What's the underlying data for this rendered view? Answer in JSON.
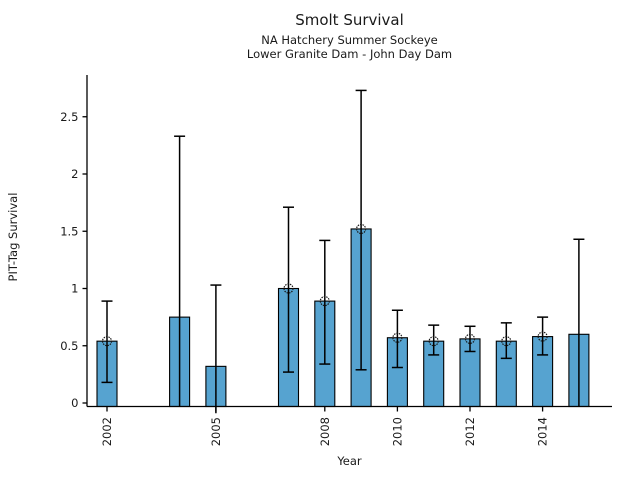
{
  "chart_data": {
    "type": "bar",
    "title": "Smolt Survival",
    "subtitle1": "NA Hatchery Summer Sockeye",
    "subtitle2": "Lower Granite Dam - John Day Dam",
    "xlabel": "Year",
    "ylabel": "PIT-Tag Survival",
    "bar_color": "#56a3d0",
    "bar_edge_color": "#000000",
    "error_bar_color": "#000000",
    "marker_edge_color": "#1a1a1a",
    "xlim": [
      2001.45,
      2015.9
    ],
    "ylim": [
      -0.035,
      2.87
    ],
    "yticks": [
      0,
      0.5,
      1,
      1.5,
      2,
      2.5
    ],
    "ytick_labels": [
      "0",
      "0.5",
      "1",
      "1.5",
      "2",
      "2.5"
    ],
    "xticks": [
      2002,
      2005,
      2008,
      2010,
      2012,
      2014
    ],
    "xtick_labels": [
      "2002",
      "2005",
      "2008",
      "2010",
      "2012",
      "2014"
    ],
    "xtick_rotation_deg": 90,
    "grid": false,
    "legend": null,
    "bars": [
      {
        "year": 2002,
        "value": 0.54,
        "ci_low": 0.18,
        "ci_high": 0.89,
        "marker": true,
        "low_cap": true,
        "high_cap": true
      },
      {
        "year": 2004,
        "value": 0.75,
        "ci_low": 0.0,
        "ci_high": 2.33,
        "marker": false,
        "low_cap": false,
        "high_cap": true
      },
      {
        "year": 2005,
        "value": 0.32,
        "ci_low": -0.09,
        "ci_high": 1.03,
        "marker": false,
        "low_cap": false,
        "high_cap": true
      },
      {
        "year": 2007,
        "value": 1.0,
        "ci_low": 0.27,
        "ci_high": 1.71,
        "marker": true,
        "low_cap": true,
        "high_cap": true
      },
      {
        "year": 2008,
        "value": 0.89,
        "ci_low": 0.34,
        "ci_high": 1.42,
        "marker": true,
        "low_cap": true,
        "high_cap": true
      },
      {
        "year": 2009,
        "value": 1.52,
        "ci_low": 0.29,
        "ci_high": 2.73,
        "marker": true,
        "low_cap": true,
        "high_cap": true
      },
      {
        "year": 2010,
        "value": 0.57,
        "ci_low": 0.31,
        "ci_high": 0.81,
        "marker": true,
        "low_cap": true,
        "high_cap": true
      },
      {
        "year": 2011,
        "value": 0.54,
        "ci_low": 0.42,
        "ci_high": 0.68,
        "marker": true,
        "low_cap": true,
        "high_cap": true
      },
      {
        "year": 2012,
        "value": 0.56,
        "ci_low": 0.45,
        "ci_high": 0.67,
        "marker": true,
        "low_cap": true,
        "high_cap": true
      },
      {
        "year": 2013,
        "value": 0.54,
        "ci_low": 0.39,
        "ci_high": 0.7,
        "marker": true,
        "low_cap": true,
        "high_cap": true
      },
      {
        "year": 2014,
        "value": 0.58,
        "ci_low": 0.42,
        "ci_high": 0.75,
        "marker": true,
        "low_cap": true,
        "high_cap": true
      },
      {
        "year": 2015,
        "value": 0.6,
        "ci_low": 0.0,
        "ci_high": 1.43,
        "marker": false,
        "low_cap": false,
        "high_cap": true
      }
    ]
  }
}
